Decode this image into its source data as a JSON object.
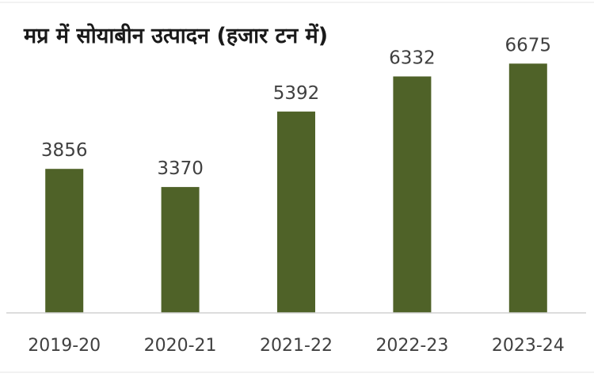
{
  "chart_data": {
    "type": "bar",
    "title": "मप्र में सोयाबीन उत्पादन (हजार टन में)",
    "categories": [
      "2019-20",
      "2020-21",
      "2021-22",
      "2022-23",
      "2023-24"
    ],
    "values": [
      3856,
      3370,
      5392,
      6332,
      6675
    ],
    "data_labels": [
      "3856",
      "3370",
      "5392",
      "6332",
      "6675"
    ],
    "xlabel": "",
    "ylabel": "",
    "ylim": [
      0,
      7000
    ],
    "grid": false,
    "legend": "none",
    "colors": {
      "bar": "#4f6228",
      "text": "#404040",
      "title": "#1a1a1a",
      "axis": "#d0d0d0",
      "background": "#ffffff"
    }
  }
}
